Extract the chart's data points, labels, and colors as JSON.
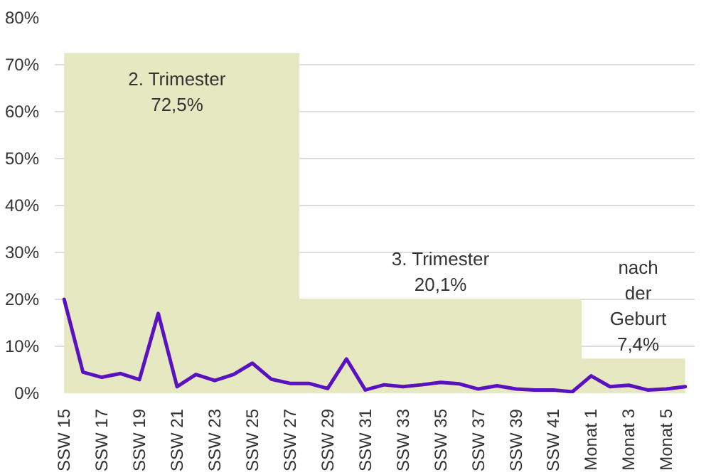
{
  "chart_data": {
    "type": "line",
    "categories": [
      "SSW 15",
      null,
      "SSW 17",
      null,
      "SSW 19",
      null,
      "SSW 21",
      null,
      "SSW 23",
      null,
      "SSW 25",
      null,
      "SSW 27",
      null,
      "SSW 29",
      null,
      "SSW 31",
      null,
      "SSW 33",
      null,
      "SSW 35",
      null,
      "SSW 37",
      null,
      "SSW 39",
      null,
      "SSW 41",
      null,
      "Monat 1",
      null,
      "Monat 3",
      null,
      "Monat 5",
      null
    ],
    "series": [
      {
        "type": "area",
        "color": "#e6e8c2",
        "values": [
          72.5,
          72.5,
          72.5,
          72.5,
          72.5,
          72.5,
          72.5,
          72.5,
          72.5,
          72.5,
          72.5,
          72.5,
          72.5,
          20.1,
          20.1,
          20.1,
          20.1,
          20.1,
          20.1,
          20.1,
          20.1,
          20.1,
          20.1,
          20.1,
          20.1,
          20.1,
          20.1,
          20.1,
          7.4,
          7.4,
          7.4,
          7.4,
          7.4,
          7.4
        ]
      },
      {
        "color": "#5a12c0",
        "values": [
          20,
          4.5,
          3.4,
          4.2,
          2.9,
          17,
          1.4,
          4,
          2.7,
          4,
          6.4,
          3,
          2.1,
          2.1,
          1,
          7.3,
          0.7,
          1.8,
          1.4,
          1.8,
          2.3,
          2,
          0.9,
          1.6,
          0.9,
          0.7,
          0.7,
          0.3,
          3.7,
          1.4,
          1.7,
          0.7,
          0.9,
          1.4
        ]
      }
    ],
    "annotations": [
      "2. Trimester\n72,5%",
      "3. Trimester\n20,1%",
      "nach\nder\nGeburt\n7,4%"
    ],
    "ylim": [
      0,
      80
    ],
    "yticks": [
      {
        "value": 0,
        "label": "0%"
      },
      {
        "value": 10,
        "label": "10%"
      },
      {
        "value": 20,
        "label": "20%"
      },
      {
        "value": 30,
        "label": "30%"
      },
      {
        "value": 40,
        "label": "40%"
      },
      {
        "value": 50,
        "label": "50%"
      },
      {
        "value": 60,
        "label": "60%"
      },
      {
        "value": 70,
        "label": "70%"
      },
      {
        "value": 80,
        "label": "80%"
      }
    ],
    "grid": "y"
  }
}
